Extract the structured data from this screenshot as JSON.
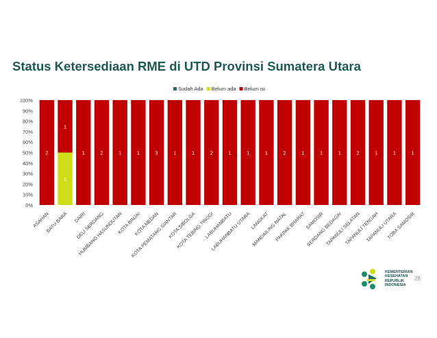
{
  "slide": {
    "title": "Status Ketersediaan RME di UTD Provinsi Sumatera Utara",
    "page_number": "28",
    "logo": {
      "line1": "KEMENTERIAN",
      "line2": "KESEHATAN",
      "line3": "REPUBLIK",
      "line4": "INDONESIA"
    }
  },
  "chart_data": {
    "type": "bar",
    "stacked": "percent",
    "title": "",
    "xlabel": "",
    "ylabel": "",
    "ylim": [
      0,
      100
    ],
    "y_ticks": [
      "0%",
      "10%",
      "20%",
      "30%",
      "40%",
      "50%",
      "60%",
      "70%",
      "80%",
      "90%",
      "100%"
    ],
    "legend_position": "top",
    "grid": false,
    "categories": [
      "ASAHAN",
      "BATU BARA",
      "DAIRI",
      "DELI SERDANG",
      "HUMBANG HASUNDUTAN",
      "KOTA BINJAI",
      "KOTA MEDAN",
      "KOTA PEMATANG SIANTAR",
      "KOTA SIBOLGA",
      "KOTA TEBING TINGGI",
      "LABUHANBATU",
      "LABUHANBATU UTARA",
      "LANGKAT",
      "MANDAILING NATAL",
      "PAKPAK BHARAT",
      "SAMOSIR",
      "SERDANG BEDAGAI",
      "TAPANULI SELATAN",
      "TAPANULI TENGAH",
      "TAPANULI UTARA",
      "TOBA SAMOSIR"
    ],
    "series": [
      {
        "name": "Sudah Ada",
        "color": "#1f6f6f",
        "values": [
          0,
          0,
          0,
          0,
          0,
          0,
          0,
          0,
          0,
          0,
          0,
          0,
          0,
          0,
          0,
          0,
          0,
          0,
          0,
          0,
          0
        ]
      },
      {
        "name": "Belum ada",
        "color": "#cfdc18",
        "values": [
          0,
          1,
          0,
          0,
          0,
          0,
          0,
          0,
          0,
          0,
          0,
          0,
          0,
          0,
          0,
          0,
          0,
          0,
          0,
          0,
          0
        ]
      },
      {
        "name": "Belum isi",
        "color": "#c00000",
        "values": [
          2,
          1,
          1,
          2,
          1,
          1,
          3,
          1,
          1,
          2,
          1,
          1,
          1,
          2,
          1,
          1,
          1,
          2,
          1,
          1,
          1
        ]
      }
    ]
  }
}
